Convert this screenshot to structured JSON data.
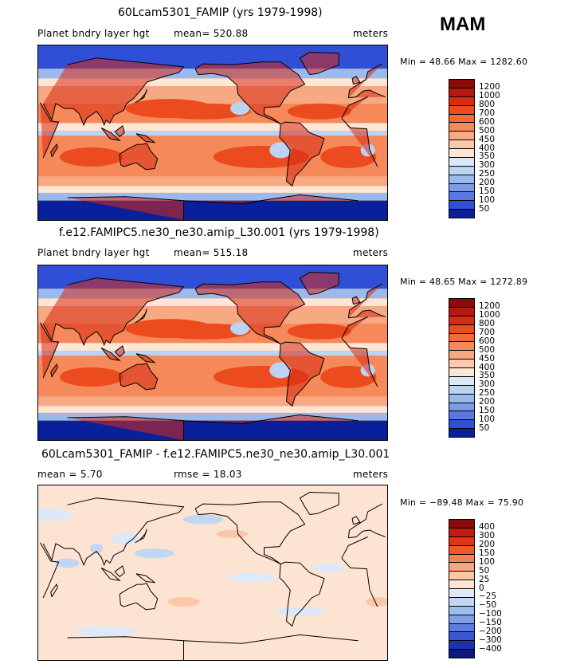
{
  "season": "MAM",
  "panels": [
    {
      "title": "60Lcam5301_FAMIP (yrs 1979-1998)",
      "left_label": "Planet bndry layer hgt",
      "mid_label": "mean= 520.88",
      "units": "meters",
      "minmax": "Min =  48.66 Max = 1282.60",
      "kind": "abs",
      "levels": [
        "1200",
        "1000",
        "800",
        "700",
        "600",
        "500",
        "450",
        "400",
        "350",
        "300",
        "250",
        "200",
        "150",
        "100",
        "50"
      ],
      "colors": [
        "#8c0a0a",
        "#b8190f",
        "#d92a14",
        "#ec4b1f",
        "#f26a3a",
        "#f5895a",
        "#f7a983",
        "#fbcaac",
        "#fde6d3",
        "#dbe8f8",
        "#bcd3f1",
        "#9cb9ec",
        "#7b9be6",
        "#5a78df",
        "#2f4fd6",
        "#0a1f9a"
      ],
      "mean": 520.88,
      "min": 48.66,
      "max": 1282.6
    },
    {
      "title": "f.e12.FAMIPC5.ne30_ne30.amip_L30.001 (yrs 1979-1998)",
      "left_label": "Planet bndry layer hgt",
      "mid_label": "mean= 515.18",
      "units": "meters",
      "minmax": "Min =  48.65 Max = 1272.89",
      "kind": "abs",
      "levels": [
        "1200",
        "1000",
        "800",
        "700",
        "600",
        "500",
        "450",
        "400",
        "350",
        "300",
        "250",
        "200",
        "150",
        "100",
        "50"
      ],
      "colors": [
        "#8c0a0a",
        "#b8190f",
        "#d92a14",
        "#ec4b1f",
        "#f26a3a",
        "#f5895a",
        "#f7a983",
        "#fbcaac",
        "#fde6d3",
        "#dbe8f8",
        "#bcd3f1",
        "#9cb9ec",
        "#7b9be6",
        "#5a78df",
        "#2f4fd6",
        "#0a1f9a"
      ],
      "mean": 515.18,
      "min": 48.65,
      "max": 1272.89
    },
    {
      "title": "60Lcam5301_FAMIP - f.e12.FAMIPC5.ne30_ne30.amip_L30.001",
      "left_label": "mean =    5.70",
      "mid_label": "rmse =   18.03",
      "units": "meters",
      "minmax": "Min = −89.48 Max =  75.90",
      "kind": "diff",
      "levels": [
        "400",
        "300",
        "200",
        "150",
        "100",
        "50",
        "25",
        "0",
        "−25",
        "−50",
        "−100",
        "−150",
        "−200",
        "−300",
        "−400"
      ],
      "colors": [
        "#8c0a0a",
        "#c21a10",
        "#e03516",
        "#f05a2a",
        "#f58352",
        "#f8a67e",
        "#fbc7a7",
        "#fde4d2",
        "#dde9f8",
        "#c1d6f2",
        "#9fbcec",
        "#7e9ee6",
        "#5c7ce0",
        "#3a58d4",
        "#1b33b0",
        "#0a1880"
      ],
      "mean": 5.7,
      "rmse": 18.03,
      "min": -89.48,
      "max": 75.9
    }
  ],
  "chart_data": [
    {
      "type": "heatmap",
      "title": "60Lcam5301_FAMIP (yrs 1979-1998)",
      "variable": "Planet bndry layer hgt",
      "units": "meters",
      "season": "MAM",
      "mean": 520.88,
      "min": 48.66,
      "max": 1282.6,
      "contour_levels": [
        50,
        100,
        150,
        200,
        250,
        300,
        350,
        400,
        450,
        500,
        600,
        700,
        800,
        1000,
        1200
      ],
      "xlim": [
        0,
        360
      ],
      "ylim": [
        -90,
        90
      ]
    },
    {
      "type": "heatmap",
      "title": "f.e12.FAMIPC5.ne30_ne30.amip_L30.001 (yrs 1979-1998)",
      "variable": "Planet bndry layer hgt",
      "units": "meters",
      "season": "MAM",
      "mean": 515.18,
      "min": 48.65,
      "max": 1272.89,
      "contour_levels": [
        50,
        100,
        150,
        200,
        250,
        300,
        350,
        400,
        450,
        500,
        600,
        700,
        800,
        1000,
        1200
      ],
      "xlim": [
        0,
        360
      ],
      "ylim": [
        -90,
        90
      ]
    },
    {
      "type": "heatmap",
      "title": "60Lcam5301_FAMIP - f.e12.FAMIPC5.ne30_ne30.amip_L30.001",
      "units": "meters",
      "season": "MAM",
      "mean": 5.7,
      "rmse": 18.03,
      "min": -89.48,
      "max": 75.9,
      "contour_levels": [
        -400,
        -300,
        -200,
        -150,
        -100,
        -50,
        -25,
        0,
        25,
        50,
        100,
        150,
        200,
        300,
        400
      ],
      "xlim": [
        0,
        360
      ],
      "ylim": [
        -90,
        90
      ]
    }
  ]
}
